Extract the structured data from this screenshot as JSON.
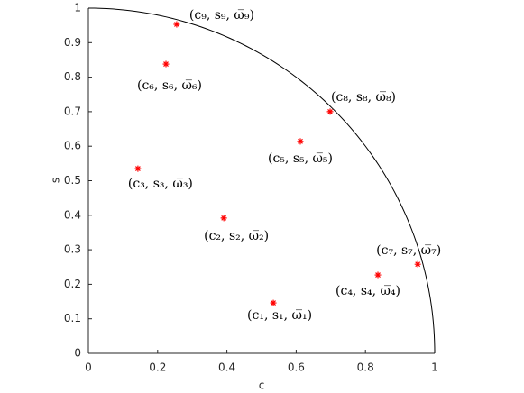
{
  "chart_data": {
    "type": "scatter",
    "x_label": "c",
    "y_label": "s",
    "series": [
      {
        "color": "#ff0000",
        "x": [
          0.534,
          0.391,
          0.143,
          0.836,
          0.612,
          0.224,
          0.951,
          0.698,
          0.255
        ],
        "values": [
          0.146,
          0.392,
          0.535,
          0.227,
          0.614,
          0.838,
          0.258,
          0.7,
          0.953
        ],
        "labels": [
          "(c₁, s₁, ω̅₁)",
          "(c₂, s₂, ω̅₂)",
          "(c₃, s₃, ω̅₃)",
          "(c₄, s₄, ω̅₄)",
          "(c₅, s₅, ω̅₅)",
          "(c₆, s₆, ω̅₆)",
          "(c₇, s₇, ω̅₇)",
          "(c₈, s₈, ω̅₈)",
          "(c₉, s₉, ω̅₉)"
        ]
      }
    ],
    "xlim": [
      0,
      1
    ],
    "ylim": [
      0,
      1
    ],
    "xticks": [
      0,
      0.2,
      0.4,
      0.6,
      0.8,
      1
    ],
    "yticks": [
      0,
      0.1,
      0.2,
      0.3,
      0.4,
      0.5,
      0.6,
      0.7,
      0.8,
      0.9,
      1
    ]
  }
}
